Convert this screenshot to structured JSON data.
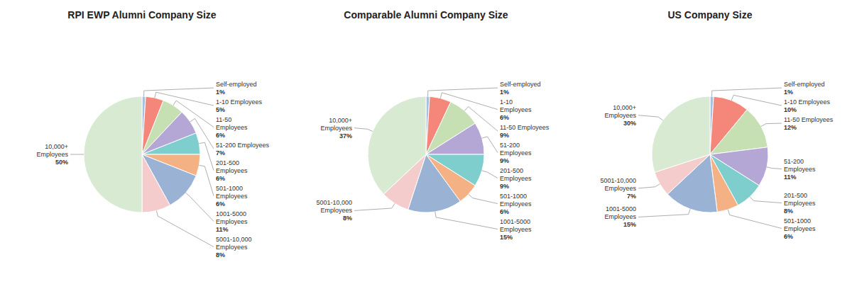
{
  "chart_data": [
    {
      "type": "pie",
      "title": "RPI EWP Alumni Company Size",
      "categories": [
        "Self-employed",
        "1-10 Employees",
        "11-50\nEmployees",
        "51-200 Employees",
        "201-500\nEmployees",
        "501-1000\nEmployees",
        "1001-5000\nEmployees",
        "5001-10,000\nEmployees",
        "10,000+\nEmployees"
      ],
      "values": [
        1,
        5,
        6,
        7,
        6,
        6,
        11,
        8,
        50
      ],
      "value_labels": [
        "1%",
        "5%",
        "6%",
        "7%",
        "6%",
        "6%",
        "11%",
        "8%",
        "50%"
      ],
      "colors": [
        "#9dc3e6",
        "#f4877a",
        "#c6e0b4",
        "#b4a7d6",
        "#7ecece",
        "#f4b183",
        "#9ab3d5",
        "#f4cccc",
        "#d9ead3"
      ]
    },
    {
      "type": "pie",
      "title": "Comparable Alumni Company Size",
      "categories": [
        "Self-employed",
        "1-10\nEmployees",
        "11-50 Employees",
        "51-200\nEmployees",
        "201-500\nEmployees",
        "501-1000\nEmployees",
        "1001-5000\nEmployees",
        "5001-10,000\nEmployees",
        "10,000+\nEmployees"
      ],
      "values": [
        1,
        6,
        9,
        9,
        9,
        6,
        15,
        8,
        37
      ],
      "value_labels": [
        "1%",
        "6%",
        "9%",
        "9%",
        "9%",
        "6%",
        "15%",
        "8%",
        "37%"
      ],
      "colors": [
        "#9dc3e6",
        "#f4877a",
        "#c6e0b4",
        "#b4a7d6",
        "#7ecece",
        "#f4b183",
        "#9ab3d5",
        "#f4cccc",
        "#d9ead3"
      ]
    },
    {
      "type": "pie",
      "title": "US Company Size",
      "categories": [
        "Self-employed",
        "1-10 Employees",
        "11-50 Employees",
        "51-200\nEmployees",
        "201-500\nEmployees",
        "501-1000\nEmployees",
        "1001-5000\nEmployees",
        "5001-10,000\nEmployees",
        "10,000+\nEmployees"
      ],
      "values": [
        1,
        10,
        12,
        11,
        8,
        6,
        15,
        7,
        30
      ],
      "value_labels": [
        "1%",
        "10%",
        "12%",
        "11%",
        "8%",
        "6%",
        "15%",
        "7%",
        "30%"
      ],
      "colors": [
        "#9dc3e6",
        "#f4877a",
        "#c6e0b4",
        "#b4a7d6",
        "#7ecece",
        "#f4b183",
        "#9ab3d5",
        "#f4cccc",
        "#d9ead3"
      ]
    }
  ]
}
